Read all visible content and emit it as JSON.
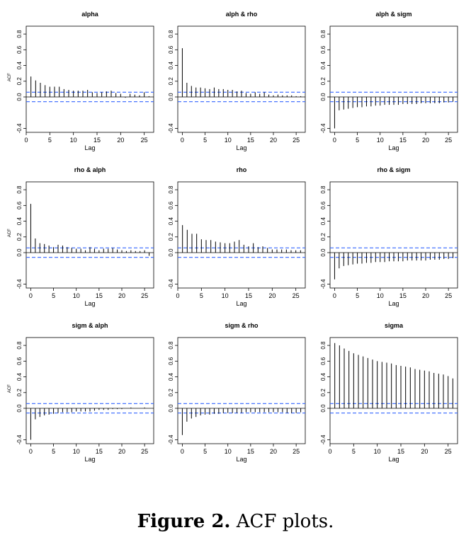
{
  "caption": {
    "label": "Figure 2.",
    "text": " ACF plots."
  },
  "colors": {
    "bars": "#000000",
    "ci_lines": "#3366ff",
    "frame": "#000000"
  },
  "chart_data": [
    {
      "type": "bar",
      "title": "alpha",
      "xlabel": "Lag",
      "ylabel": "ACF",
      "xlim": [
        0,
        27
      ],
      "ylim": [
        -0.45,
        0.9
      ],
      "ci": 0.06,
      "xticks": [
        0,
        5,
        10,
        15,
        20,
        25
      ],
      "yticks": [
        -0.4,
        0.0,
        0.2,
        0.4,
        0.6,
        0.8
      ],
      "lags": [
        1,
        2,
        3,
        4,
        5,
        6,
        7,
        8,
        9,
        10,
        11,
        12,
        13,
        14,
        15,
        16,
        17,
        18,
        19,
        20,
        21,
        22,
        23,
        24,
        25,
        26
      ],
      "values": [
        0.26,
        0.21,
        0.18,
        0.15,
        0.13,
        0.13,
        0.13,
        0.1,
        0.09,
        0.08,
        0.08,
        0.08,
        0.09,
        0.06,
        0.05,
        0.06,
        0.07,
        0.08,
        0.05,
        0.04,
        -0.01,
        0.04,
        0.03,
        0.02,
        0.06,
        0.01
      ]
    },
    {
      "type": "bar",
      "title": "alph & rho",
      "xlabel": "Lag",
      "ylabel": "",
      "xlim": [
        -1,
        27
      ],
      "ylim": [
        -0.45,
        0.9
      ],
      "ci": 0.06,
      "xticks": [
        0,
        5,
        10,
        15,
        20,
        25
      ],
      "yticks": [
        -0.4,
        0.0,
        0.2,
        0.4,
        0.6,
        0.8
      ],
      "lags": [
        0,
        1,
        2,
        3,
        4,
        5,
        6,
        7,
        8,
        9,
        10,
        11,
        12,
        13,
        14,
        15,
        16,
        17,
        18,
        19,
        20,
        21,
        22,
        23,
        24,
        25,
        26
      ],
      "values": [
        0.62,
        0.18,
        0.14,
        0.12,
        0.12,
        0.11,
        0.1,
        0.12,
        0.1,
        0.1,
        0.09,
        0.09,
        0.07,
        0.08,
        0.05,
        0.04,
        0.06,
        0.04,
        0.06,
        0.03,
        0.02,
        0.03,
        0.02,
        0.02,
        0.02,
        0.01,
        0.01
      ]
    },
    {
      "type": "bar",
      "title": "alph & sigm",
      "xlabel": "Lag",
      "ylabel": "",
      "xlim": [
        -1,
        27
      ],
      "ylim": [
        -0.45,
        0.9
      ],
      "ci": 0.06,
      "xticks": [
        0,
        5,
        10,
        15,
        20,
        25
      ],
      "yticks": [
        -0.4,
        0.0,
        0.2,
        0.4,
        0.6,
        0.8
      ],
      "lags": [
        0,
        1,
        2,
        3,
        4,
        5,
        6,
        7,
        8,
        9,
        10,
        11,
        12,
        13,
        14,
        15,
        16,
        17,
        18,
        19,
        20,
        21,
        22,
        23,
        24,
        25,
        26
      ],
      "values": [
        -0.4,
        -0.17,
        -0.16,
        -0.15,
        -0.14,
        -0.13,
        -0.13,
        -0.12,
        -0.12,
        -0.11,
        -0.11,
        -0.1,
        -0.1,
        -0.1,
        -0.1,
        -0.09,
        -0.09,
        -0.09,
        -0.09,
        -0.08,
        -0.08,
        -0.08,
        -0.08,
        -0.08,
        -0.07,
        -0.07,
        -0.06
      ]
    },
    {
      "type": "bar",
      "title": "rho & alph",
      "xlabel": "Lag",
      "ylabel": "ACF",
      "xlim": [
        -1,
        27
      ],
      "ylim": [
        -0.45,
        0.9
      ],
      "ci": 0.06,
      "xticks": [
        0,
        5,
        10,
        15,
        20,
        25
      ],
      "yticks": [
        -0.4,
        0.0,
        0.2,
        0.4,
        0.6,
        0.8
      ],
      "lags": [
        0,
        1,
        2,
        3,
        4,
        5,
        6,
        7,
        8,
        9,
        10,
        11,
        12,
        13,
        14,
        15,
        16,
        17,
        18,
        19,
        20,
        21,
        22,
        23,
        24,
        25,
        26
      ],
      "values": [
        0.62,
        0.18,
        0.12,
        0.11,
        0.09,
        0.07,
        0.1,
        0.09,
        0.07,
        0.06,
        0.05,
        0.05,
        0.03,
        0.07,
        0.05,
        0.03,
        0.05,
        0.05,
        0.06,
        0.04,
        0.03,
        0.02,
        0.03,
        0.02,
        0.02,
        0.03,
        -0.04
      ]
    },
    {
      "type": "bar",
      "title": "rho",
      "xlabel": "Lag",
      "ylabel": "",
      "xlim": [
        0,
        27
      ],
      "ylim": [
        -0.45,
        0.9
      ],
      "ci": 0.06,
      "xticks": [
        0,
        5,
        10,
        15,
        20,
        25
      ],
      "yticks": [
        -0.4,
        0.0,
        0.2,
        0.4,
        0.6,
        0.8
      ],
      "lags": [
        1,
        2,
        3,
        4,
        5,
        6,
        7,
        8,
        9,
        10,
        11,
        12,
        13,
        14,
        15,
        16,
        17,
        18,
        19,
        20,
        21,
        22,
        23,
        24,
        25,
        26
      ],
      "values": [
        0.35,
        0.29,
        0.24,
        0.24,
        0.17,
        0.16,
        0.16,
        0.14,
        0.13,
        0.12,
        0.12,
        0.14,
        0.16,
        0.1,
        0.08,
        0.12,
        0.07,
        0.08,
        0.06,
        0.04,
        0.04,
        0.04,
        0.04,
        0.03,
        0.03,
        0.03
      ]
    },
    {
      "type": "bar",
      "title": "rho & sigm",
      "xlabel": "Lag",
      "ylabel": "",
      "xlim": [
        -1,
        27
      ],
      "ylim": [
        -0.45,
        0.9
      ],
      "ci": 0.06,
      "xticks": [
        0,
        5,
        10,
        15,
        20,
        25
      ],
      "yticks": [
        -0.4,
        0.0,
        0.2,
        0.4,
        0.6,
        0.8
      ],
      "lags": [
        0,
        1,
        2,
        3,
        4,
        5,
        6,
        7,
        8,
        9,
        10,
        11,
        12,
        13,
        14,
        15,
        16,
        17,
        18,
        19,
        20,
        21,
        22,
        23,
        24,
        25,
        26
      ],
      "values": [
        -0.34,
        -0.2,
        -0.17,
        -0.16,
        -0.15,
        -0.14,
        -0.14,
        -0.13,
        -0.13,
        -0.12,
        -0.12,
        -0.12,
        -0.11,
        -0.11,
        -0.11,
        -0.11,
        -0.1,
        -0.1,
        -0.1,
        -0.1,
        -0.1,
        -0.09,
        -0.09,
        -0.09,
        -0.08,
        -0.08,
        -0.07
      ]
    },
    {
      "type": "bar",
      "title": "sigm & alph",
      "xlabel": "Lag",
      "ylabel": "ACF",
      "xlim": [
        -1,
        27
      ],
      "ylim": [
        -0.45,
        0.9
      ],
      "ci": 0.06,
      "xticks": [
        0,
        5,
        10,
        15,
        20,
        25
      ],
      "yticks": [
        -0.4,
        0.0,
        0.2,
        0.4,
        0.6,
        0.8
      ],
      "lags": [
        0,
        1,
        2,
        3,
        4,
        5,
        6,
        7,
        8,
        9,
        10,
        11,
        12,
        13,
        14,
        15,
        16,
        17,
        18,
        19,
        20,
        21,
        22,
        23,
        24,
        25,
        26
      ],
      "values": [
        -0.4,
        -0.14,
        -0.11,
        -0.09,
        -0.08,
        -0.07,
        -0.06,
        -0.05,
        -0.05,
        -0.05,
        -0.04,
        -0.04,
        -0.04,
        -0.04,
        -0.03,
        -0.02,
        -0.02,
        -0.02,
        -0.01,
        -0.01,
        -0.01,
        0.0,
        0.01,
        0.0,
        0.0,
        0.01,
        0.0
      ]
    },
    {
      "type": "bar",
      "title": "sigm & rho",
      "xlabel": "Lag",
      "ylabel": "",
      "xlim": [
        -1,
        27
      ],
      "ylim": [
        -0.45,
        0.9
      ],
      "ci": 0.06,
      "xticks": [
        0,
        5,
        10,
        15,
        20,
        25
      ],
      "yticks": [
        -0.4,
        0.0,
        0.2,
        0.4,
        0.6,
        0.8
      ],
      "lags": [
        0,
        1,
        2,
        3,
        4,
        5,
        6,
        7,
        8,
        9,
        10,
        11,
        12,
        13,
        14,
        15,
        16,
        17,
        18,
        19,
        20,
        21,
        22,
        23,
        24,
        25,
        26
      ],
      "values": [
        -0.34,
        -0.17,
        -0.13,
        -0.11,
        -0.09,
        -0.08,
        -0.08,
        -0.07,
        -0.07,
        -0.06,
        -0.06,
        -0.06,
        -0.06,
        -0.06,
        -0.05,
        -0.05,
        -0.05,
        -0.05,
        -0.05,
        -0.05,
        -0.05,
        -0.05,
        -0.05,
        -0.06,
        -0.06,
        -0.06,
        -0.05
      ]
    },
    {
      "type": "bar",
      "title": "sigma",
      "xlabel": "Lag",
      "ylabel": "",
      "xlim": [
        0,
        27
      ],
      "ylim": [
        -0.45,
        0.9
      ],
      "ci": 0.06,
      "xticks": [
        0,
        5,
        10,
        15,
        20,
        25
      ],
      "yticks": [
        -0.4,
        0.0,
        0.2,
        0.4,
        0.6,
        0.8
      ],
      "lags": [
        1,
        2,
        3,
        4,
        5,
        6,
        7,
        8,
        9,
        10,
        11,
        12,
        13,
        14,
        15,
        16,
        17,
        18,
        19,
        20,
        21,
        22,
        23,
        24,
        25,
        26
      ],
      "values": [
        0.83,
        0.8,
        0.76,
        0.73,
        0.7,
        0.68,
        0.66,
        0.64,
        0.62,
        0.6,
        0.59,
        0.58,
        0.57,
        0.55,
        0.54,
        0.53,
        0.52,
        0.5,
        0.49,
        0.48,
        0.47,
        0.45,
        0.44,
        0.43,
        0.41,
        0.38
      ]
    }
  ]
}
